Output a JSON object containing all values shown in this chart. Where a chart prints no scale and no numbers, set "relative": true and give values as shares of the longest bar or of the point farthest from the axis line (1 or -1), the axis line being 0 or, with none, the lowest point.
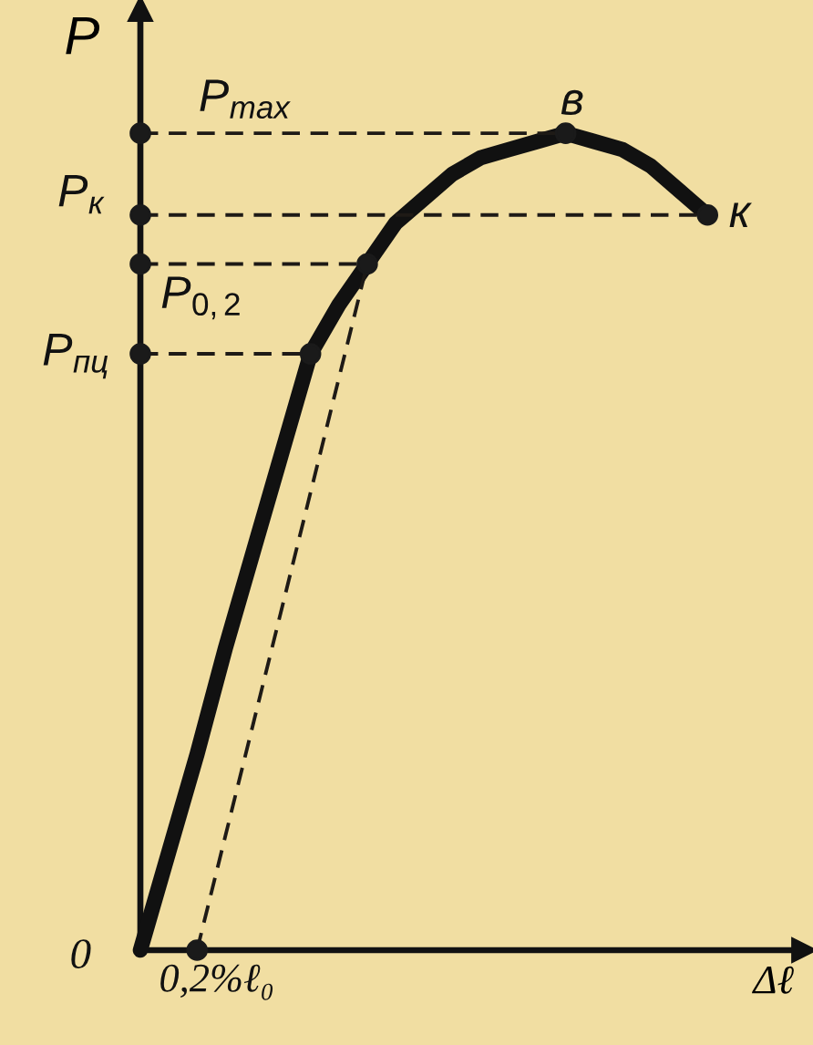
{
  "chart_data": {
    "type": "line",
    "relative": true,
    "xlabel": "Δℓ",
    "ylabel": "P",
    "categories": [
      null,
      null,
      null,
      null,
      null,
      null,
      null,
      null,
      null,
      null,
      null,
      null,
      null,
      null,
      null,
      null,
      null,
      null,
      null,
      null,
      null
    ],
    "series": [
      {
        "color": "#111111",
        "line_style": "solid",
        "values": [
          0,
          0.12,
          0.24,
          0.37,
          0.49,
          0.61,
          0.73,
          0.79,
          0.84,
          0.89,
          0.92,
          0.95,
          0.97,
          0.98,
          0.99,
          1,
          0.99,
          0.98,
          0.96,
          0.93,
          0.9
        ]
      },
      {
        "name": "P$_{max}$",
        "color": "#1e1a16",
        "line_style": "dashed",
        "values": [
          1,
          1,
          1,
          1,
          1,
          1,
          1,
          1,
          1,
          1,
          1,
          1,
          1,
          1,
          1,
          1,
          null,
          null,
          null,
          null,
          null
        ]
      },
      {
        "name": "P$_{к}$",
        "color": "#1e1a16",
        "line_style": "dashed",
        "values": [
          0.9,
          0.9,
          0.9,
          0.9,
          0.9,
          0.9,
          0.9,
          0.9,
          0.9,
          0.9,
          0.9,
          0.9,
          0.9,
          0.9,
          0.9,
          0.9,
          0.9,
          0.9,
          0.9,
          0.9,
          0.9
        ]
      },
      {
        "name": "P$_{0,2}$",
        "color": "#1e1a16",
        "line_style": "dashed",
        "values": [
          0.84,
          0.84,
          0.84,
          0.84,
          0.84,
          0.84,
          0.84,
          0.84,
          0.84,
          null,
          null,
          null,
          null,
          null,
          null,
          null,
          null,
          null,
          null,
          null,
          null
        ]
      },
      {
        "name": "P$_{пц}$",
        "color": "#1e1a16",
        "line_style": "dashed",
        "values": [
          0.73,
          0.73,
          0.73,
          0.73,
          0.73,
          0.73,
          0.73,
          null,
          null,
          null,
          null,
          null,
          null,
          null,
          null,
          null,
          null,
          null,
          null,
          null,
          null
        ]
      },
      {
        "color": "#1e1a16",
        "line_style": "dashed",
        "values": [
          null,
          null,
          0,
          0.14,
          0.28,
          0.42,
          0.56,
          0.7,
          0.84,
          null,
          null,
          null,
          null,
          null,
          null,
          null,
          null,
          null,
          null,
          null,
          null
        ]
      },
      {
        "color": "#1a1a1a",
        "marker": "circle",
        "values": [
          1,
          null,
          0,
          null,
          null,
          null,
          0.73,
          null,
          0.84,
          null,
          null,
          null,
          null,
          null,
          null,
          1,
          null,
          null,
          null,
          null,
          0.9
        ]
      },
      {
        "color": "#1a1a1a",
        "marker": "circle",
        "values": [
          0.9,
          null,
          null,
          null,
          null,
          null,
          null,
          null,
          null,
          null,
          null,
          null,
          null,
          null,
          null,
          null,
          null,
          null,
          null,
          null,
          null
        ]
      },
      {
        "color": "#1a1a1a",
        "marker": "circle",
        "values": [
          0.84,
          null,
          null,
          null,
          null,
          null,
          null,
          null,
          null,
          null,
          null,
          null,
          null,
          null,
          null,
          null,
          null,
          null,
          null,
          null,
          null
        ]
      },
      {
        "color": "#1a1a1a",
        "marker": "circle",
        "values": [
          0.73,
          null,
          null,
          null,
          null,
          null,
          null,
          null,
          null,
          null,
          null,
          null,
          null,
          null,
          null,
          null,
          null,
          null,
          null,
          null,
          null
        ]
      }
    ],
    "annotations": [
      "в",
      "к",
      "0",
      "0,2%ℓ₀"
    ]
  }
}
